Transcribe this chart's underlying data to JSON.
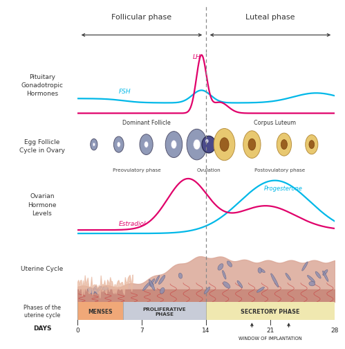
{
  "bg_color": "#ffffff",
  "label_panel_color": "#c0bedd",
  "follicular_phase_label": "Follicular phase",
  "luteal_phase_label": "Luteal phase",
  "panel_labels": [
    "Pituitary\nGonadotropic\nHormones",
    "Egg Follicle\nCycle in Ovary",
    "Ovarian\nHormone\nLevels",
    "Uterine Cycle"
  ],
  "phase_row_label": "Phases of the\nuterine cycle",
  "days_label": "DAYS",
  "day_ticks": [
    0,
    7,
    14,
    21,
    28
  ],
  "menses_color": "#f0a878",
  "proliferative_color": "#c8ccd8",
  "secretory_color": "#f0e8b0",
  "menses_label": "MENSES",
  "proliferative_label": "PROLIFERATIVE\nPHASE",
  "secretory_label": "SECRETORY PHASE",
  "lh_color": "#e0006a",
  "fsh_color": "#00b8e8",
  "estradiol_color": "#e0006a",
  "progesterone_color": "#00b8e8",
  "lh_label": "LH",
  "fsh_label": "FSH",
  "estradiol_label": "Estradiol",
  "progesterone_label": "Progesterone",
  "window_label": "WINDOW OF IMPLANTATION",
  "dashed_line_color": "#888888",
  "border_color": "#999999",
  "uterine_bg": "#f0e0d8",
  "uterine_fill": "#dba898",
  "uterine_base": "#c8887a"
}
